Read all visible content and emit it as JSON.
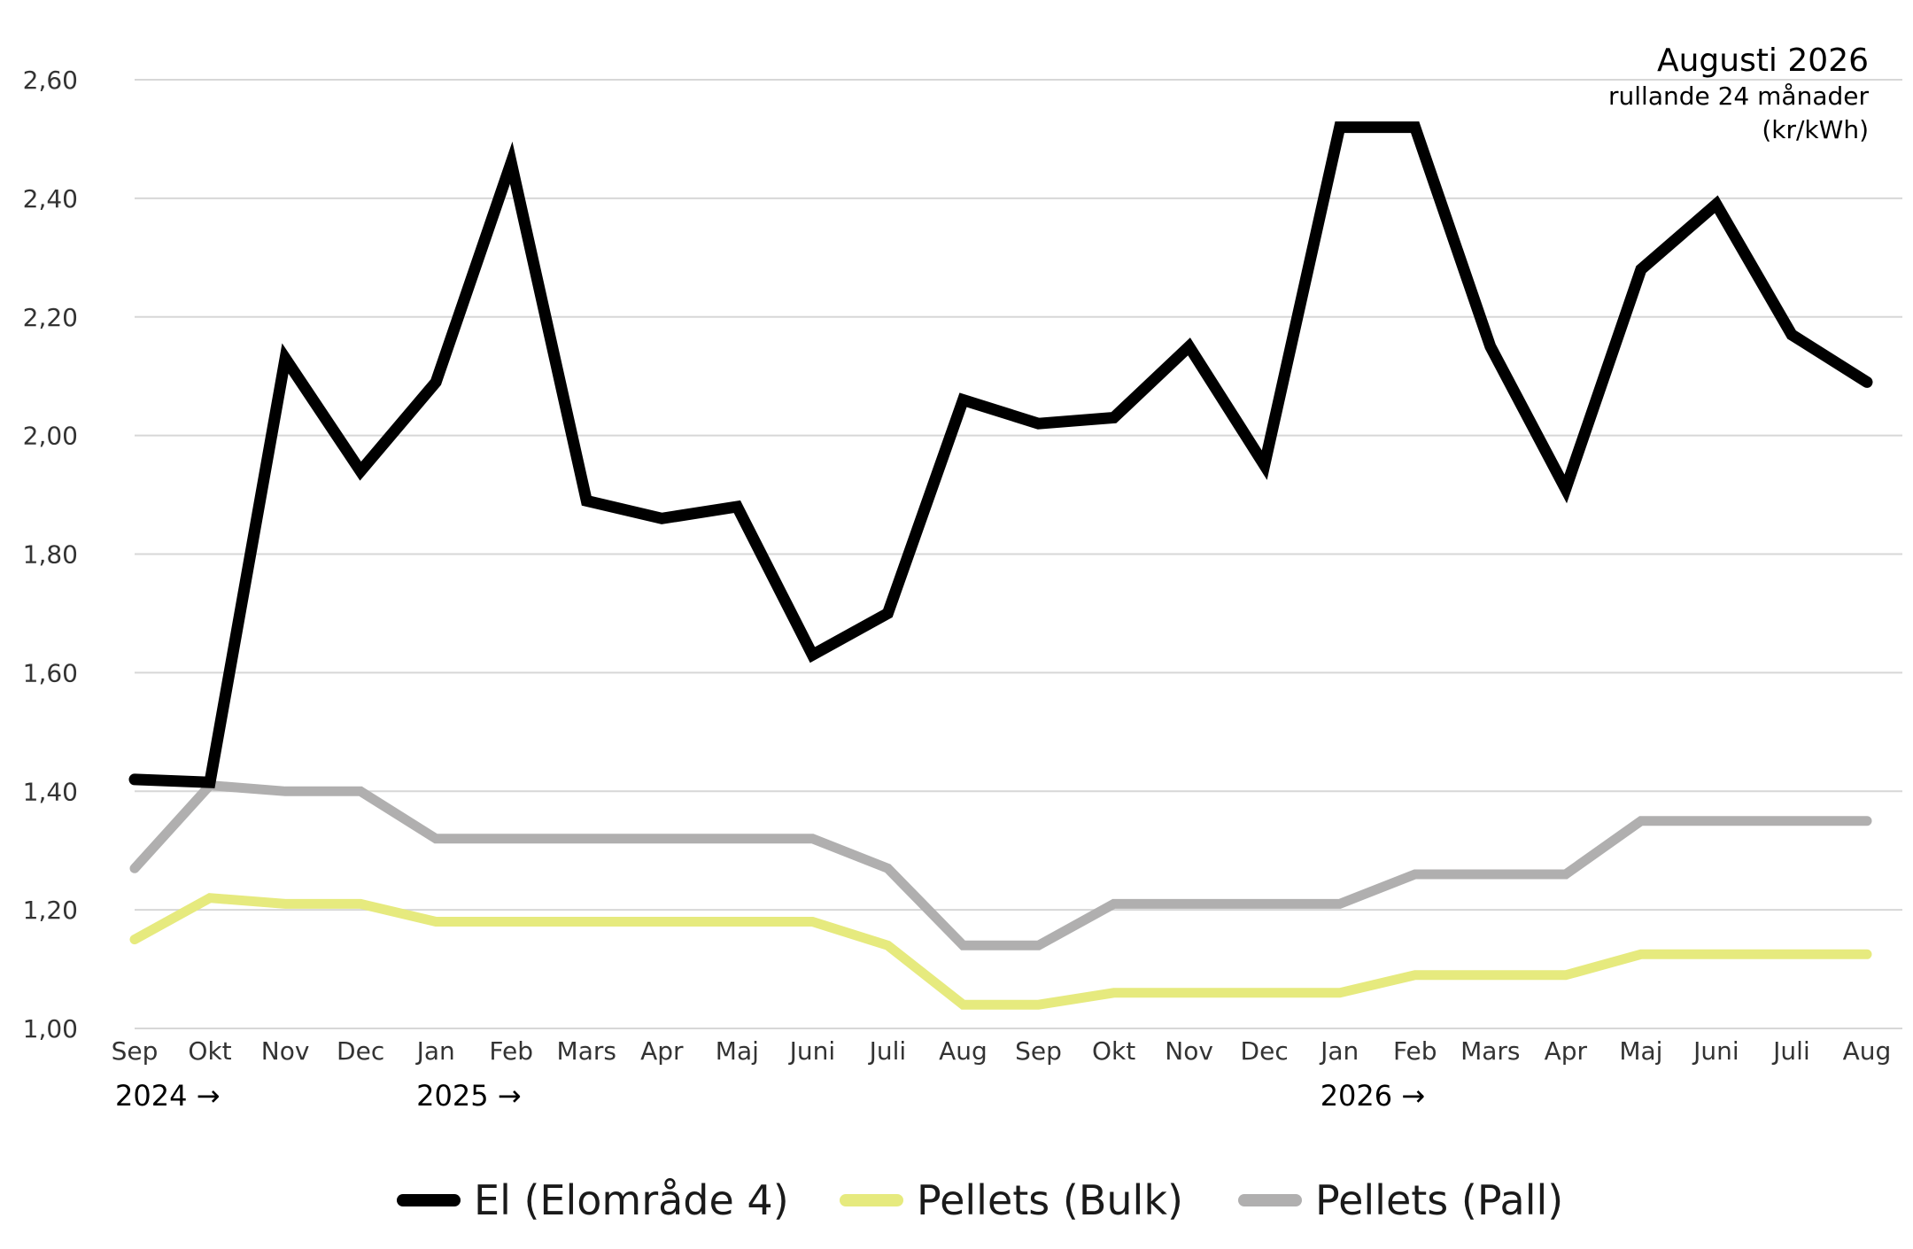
{
  "chart_data": {
    "type": "line",
    "title": "Augusti 2026",
    "subtitle": "rullande 24 månader",
    "unit": "(kr/kWh)",
    "categories": [
      "Sep",
      "Okt",
      "Nov",
      "Dec",
      "Jan",
      "Feb",
      "Mars",
      "Apr",
      "Maj",
      "Juni",
      "Juli",
      "Aug",
      "Sep",
      "Okt",
      "Nov",
      "Dec",
      "Jan",
      "Feb",
      "Mars",
      "Apr",
      "Maj",
      "Juni",
      "Juli",
      "Aug"
    ],
    "year_markers": [
      {
        "label": "2024 →",
        "category_index": 0
      },
      {
        "label": "2025 →",
        "category_index": 4
      },
      {
        "label": "2026 →",
        "category_index": 16
      }
    ],
    "ylim": [
      1.0,
      2.6
    ],
    "yticks": [
      1.0,
      1.2,
      1.4,
      1.6,
      1.8,
      2.0,
      2.2,
      2.4,
      2.6
    ],
    "ytick_labels": [
      "1,00",
      "1,20",
      "1,40",
      "1,60",
      "1,80",
      "2,00",
      "2,20",
      "2,40",
      "2,60"
    ],
    "grid": "horizontal",
    "legend_position": "bottom",
    "series": [
      {
        "name": "El (Elområde 4)",
        "color": "#000000",
        "values": [
          1.42,
          1.415,
          2.13,
          1.94,
          2.09,
          2.46,
          1.89,
          1.86,
          1.88,
          1.63,
          1.7,
          2.06,
          2.02,
          2.03,
          2.15,
          1.95,
          2.52,
          2.52,
          2.15,
          1.91,
          2.28,
          2.39,
          2.17,
          2.09
        ]
      },
      {
        "name": "Pellets (Bulk)",
        "color": "#e6ea7e",
        "values": [
          1.15,
          1.22,
          1.21,
          1.21,
          1.18,
          1.18,
          1.18,
          1.18,
          1.18,
          1.18,
          1.14,
          1.04,
          1.04,
          1.06,
          1.06,
          1.06,
          1.06,
          1.09,
          1.09,
          1.09,
          1.125,
          1.125,
          1.125,
          1.125
        ]
      },
      {
        "name": "Pellets (Pall)",
        "color": "#b0afaf",
        "values": [
          1.27,
          1.41,
          1.4,
          1.4,
          1.32,
          1.32,
          1.32,
          1.32,
          1.32,
          1.32,
          1.27,
          1.14,
          1.14,
          1.21,
          1.21,
          1.21,
          1.21,
          1.26,
          1.26,
          1.26,
          1.35,
          1.35,
          1.35,
          1.35
        ]
      }
    ]
  }
}
